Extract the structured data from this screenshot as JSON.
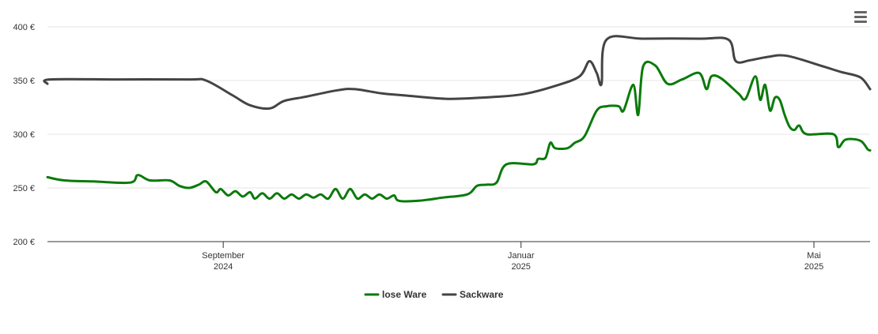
{
  "menu": {
    "icon": "hamburger-menu-icon"
  },
  "chart_data": {
    "type": "line",
    "title": "",
    "xlabel": "",
    "ylabel": "",
    "x_range": [
      "2024-06-21",
      "2025-05-24"
    ],
    "ylim": [
      200,
      400
    ],
    "y_ticks": [
      {
        "value": 200,
        "label": "200 €"
      },
      {
        "value": 250,
        "label": "250 €"
      },
      {
        "value": 300,
        "label": "300 €"
      },
      {
        "value": 350,
        "label": "350 €"
      },
      {
        "value": 400,
        "label": "400 €"
      }
    ],
    "x_ticks": [
      {
        "date": "2024-09-01",
        "month": "September",
        "year": "2024"
      },
      {
        "date": "2025-01-01",
        "month": "Januar",
        "year": "2025"
      },
      {
        "date": "2025-05-01",
        "month": "Mai",
        "year": "2025"
      }
    ],
    "grid": "horizontal",
    "legend_position": "bottom-center",
    "series": [
      {
        "name": "lose Ware",
        "color": "#0a7a0a",
        "points": [
          [
            "2024-06-21",
            260
          ],
          [
            "2024-06-28",
            257
          ],
          [
            "2024-07-10",
            256
          ],
          [
            "2024-07-25",
            255
          ],
          [
            "2024-07-28",
            262
          ],
          [
            "2024-08-02",
            257
          ],
          [
            "2024-08-10",
            257
          ],
          [
            "2024-08-14",
            252
          ],
          [
            "2024-08-18",
            250
          ],
          [
            "2024-08-22",
            253
          ],
          [
            "2024-08-25",
            256
          ],
          [
            "2024-08-29",
            246
          ],
          [
            "2024-08-31",
            249
          ],
          [
            "2024-09-03",
            243
          ],
          [
            "2024-09-06",
            247
          ],
          [
            "2024-09-09",
            242
          ],
          [
            "2024-09-12",
            246
          ],
          [
            "2024-09-14",
            240
          ],
          [
            "2024-09-17",
            245
          ],
          [
            "2024-09-20",
            240
          ],
          [
            "2024-09-23",
            245
          ],
          [
            "2024-09-26",
            240
          ],
          [
            "2024-09-29",
            244
          ],
          [
            "2024-10-02",
            240
          ],
          [
            "2024-10-05",
            244
          ],
          [
            "2024-10-08",
            241
          ],
          [
            "2024-10-11",
            244
          ],
          [
            "2024-10-14",
            240
          ],
          [
            "2024-10-17",
            249
          ],
          [
            "2024-10-20",
            240
          ],
          [
            "2024-10-23",
            249
          ],
          [
            "2024-10-26",
            240
          ],
          [
            "2024-10-29",
            244
          ],
          [
            "2024-11-01",
            240
          ],
          [
            "2024-11-04",
            244
          ],
          [
            "2024-11-07",
            240
          ],
          [
            "2024-11-10",
            243
          ],
          [
            "2024-11-12",
            238
          ],
          [
            "2024-11-20",
            238
          ],
          [
            "2024-11-30",
            241
          ],
          [
            "2024-12-10",
            244
          ],
          [
            "2024-12-14",
            252
          ],
          [
            "2024-12-18",
            253
          ],
          [
            "2024-12-22",
            255
          ],
          [
            "2024-12-26",
            272
          ],
          [
            "2025-01-06",
            272
          ],
          [
            "2025-01-08",
            277
          ],
          [
            "2025-01-11",
            278
          ],
          [
            "2025-01-13",
            292
          ],
          [
            "2025-01-15",
            287
          ],
          [
            "2025-01-20",
            287
          ],
          [
            "2025-01-23",
            292
          ],
          [
            "2025-01-27",
            298
          ],
          [
            "2025-02-01",
            322
          ],
          [
            "2025-02-05",
            326
          ],
          [
            "2025-02-10",
            326
          ],
          [
            "2025-02-12",
            322
          ],
          [
            "2025-02-16",
            346
          ],
          [
            "2025-02-18",
            318
          ],
          [
            "2025-02-20",
            363
          ],
          [
            "2025-02-25",
            364
          ],
          [
            "2025-03-02",
            347
          ],
          [
            "2025-03-08",
            351
          ],
          [
            "2025-03-15",
            357
          ],
          [
            "2025-03-18",
            342
          ],
          [
            "2025-03-20",
            354
          ],
          [
            "2025-03-24",
            352
          ],
          [
            "2025-03-31",
            338
          ],
          [
            "2025-04-03",
            333
          ],
          [
            "2025-04-07",
            354
          ],
          [
            "2025-04-09",
            332
          ],
          [
            "2025-04-11",
            346
          ],
          [
            "2025-04-13",
            322
          ],
          [
            "2025-04-15",
            334
          ],
          [
            "2025-04-17",
            332
          ],
          [
            "2025-04-19",
            318
          ],
          [
            "2025-04-21",
            307
          ],
          [
            "2025-04-23",
            304
          ],
          [
            "2025-04-25",
            308
          ],
          [
            "2025-04-28",
            300
          ],
          [
            "2025-05-09",
            300
          ],
          [
            "2025-05-11",
            288
          ],
          [
            "2025-05-14",
            295
          ],
          [
            "2025-05-20",
            294
          ],
          [
            "2025-05-23",
            286
          ],
          [
            "2025-05-24",
            285
          ]
        ]
      },
      {
        "name": "Sackware",
        "color": "#444444",
        "points": [
          [
            "2024-06-21",
            347
          ],
          [
            "2024-06-22",
            351
          ],
          [
            "2024-07-20",
            351
          ],
          [
            "2024-08-18",
            351
          ],
          [
            "2024-08-25",
            350
          ],
          [
            "2024-09-05",
            336
          ],
          [
            "2024-09-12",
            327
          ],
          [
            "2024-09-20",
            324
          ],
          [
            "2024-09-26",
            331
          ],
          [
            "2024-10-05",
            335
          ],
          [
            "2024-10-18",
            341
          ],
          [
            "2024-10-25",
            342
          ],
          [
            "2024-11-05",
            338
          ],
          [
            "2024-11-15",
            336
          ],
          [
            "2024-12-01",
            333
          ],
          [
            "2024-12-15",
            334
          ],
          [
            "2025-01-01",
            337
          ],
          [
            "2025-01-15",
            345
          ],
          [
            "2025-01-25",
            354
          ],
          [
            "2025-01-29",
            368
          ],
          [
            "2025-02-01",
            357
          ],
          [
            "2025-02-03",
            347
          ],
          [
            "2025-02-05",
            388
          ],
          [
            "2025-02-20",
            389
          ],
          [
            "2025-03-15",
            389
          ],
          [
            "2025-03-27",
            388
          ],
          [
            "2025-03-30",
            368
          ],
          [
            "2025-04-05",
            369
          ],
          [
            "2025-04-12",
            372
          ],
          [
            "2025-04-20",
            373
          ],
          [
            "2025-05-05",
            363
          ],
          [
            "2025-05-12",
            358
          ],
          [
            "2025-05-20",
            353
          ],
          [
            "2025-05-24",
            342
          ]
        ]
      }
    ]
  }
}
